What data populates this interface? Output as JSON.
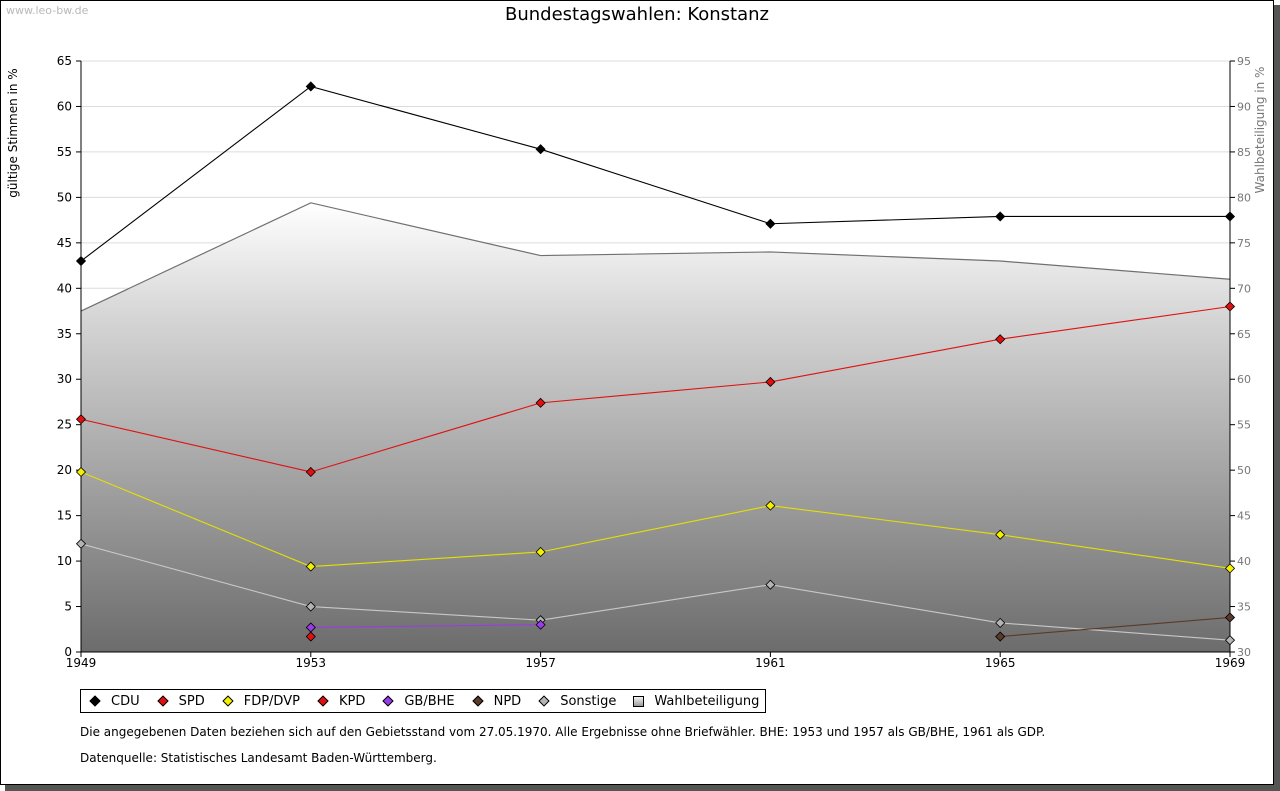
{
  "watermark": "www.leo-bw.de",
  "title": "Bundestagswahlen: Konstanz",
  "note": "Die angegebenen Daten beziehen sich auf den Gebietsstand vom 27.05.1970. Alle Ergebnisse ohne Briefwähler. BHE: 1953 und 1957 als GB/BHE, 1961 als GDP.",
  "source": "Datenquelle: Statistisches Landesamt Baden-Württemberg.",
  "chart_data": {
    "type": "line",
    "title": "Bundestagswahlen: Konstanz",
    "xlabel": "",
    "ylabel": "gültige Stimmen in %",
    "y2label": "Wahlbeteiligung in %",
    "categories": [
      "1949",
      "1953",
      "1957",
      "1961",
      "1965",
      "1969"
    ],
    "ylim": [
      0,
      65
    ],
    "yticks": [
      0,
      5,
      10,
      15,
      20,
      25,
      30,
      35,
      40,
      45,
      50,
      55,
      60,
      65
    ],
    "y2lim": [
      30,
      95
    ],
    "y2ticks": [
      30,
      35,
      40,
      45,
      50,
      55,
      60,
      65,
      70,
      75,
      80,
      85,
      90,
      95
    ],
    "grid": true,
    "legend_position": "bottom",
    "series": [
      {
        "name": "CDU",
        "color": "#000000",
        "line": "#000000",
        "values": [
          43.0,
          62.2,
          55.3,
          47.1,
          47.9,
          47.9
        ]
      },
      {
        "name": "SPD",
        "color": "#e01010",
        "line": "#e01010",
        "values": [
          25.6,
          19.8,
          27.4,
          29.7,
          34.4,
          38.0
        ]
      },
      {
        "name": "FDP/DVP",
        "color": "#f5f000",
        "line": "#e6e000",
        "values": [
          19.8,
          9.4,
          11.0,
          16.1,
          12.9,
          9.2
        ]
      },
      {
        "name": "KPD",
        "color": "#e01010",
        "line": "#e01010",
        "values": [
          null,
          1.7,
          null,
          null,
          null,
          null
        ]
      },
      {
        "name": "GB/BHE",
        "color": "#9a3be8",
        "line": "#9a3be8",
        "values": [
          null,
          2.7,
          3.0,
          null,
          null,
          null
        ]
      },
      {
        "name": "NPD",
        "color": "#5a3a28",
        "line": "#5a3a28",
        "values": [
          null,
          null,
          null,
          null,
          1.7,
          3.8
        ]
      },
      {
        "name": "Sonstige",
        "color": "#b4b4b4",
        "line": "#c8c8c8",
        "values": [
          11.9,
          5.0,
          3.5,
          7.4,
          3.2,
          1.3
        ]
      }
    ],
    "area_series": {
      "name": "Wahlbeteiligung",
      "axis": "y2",
      "color": "#808080",
      "values": [
        67.5,
        79.4,
        73.6,
        74.0,
        73.0,
        71.0
      ]
    }
  }
}
